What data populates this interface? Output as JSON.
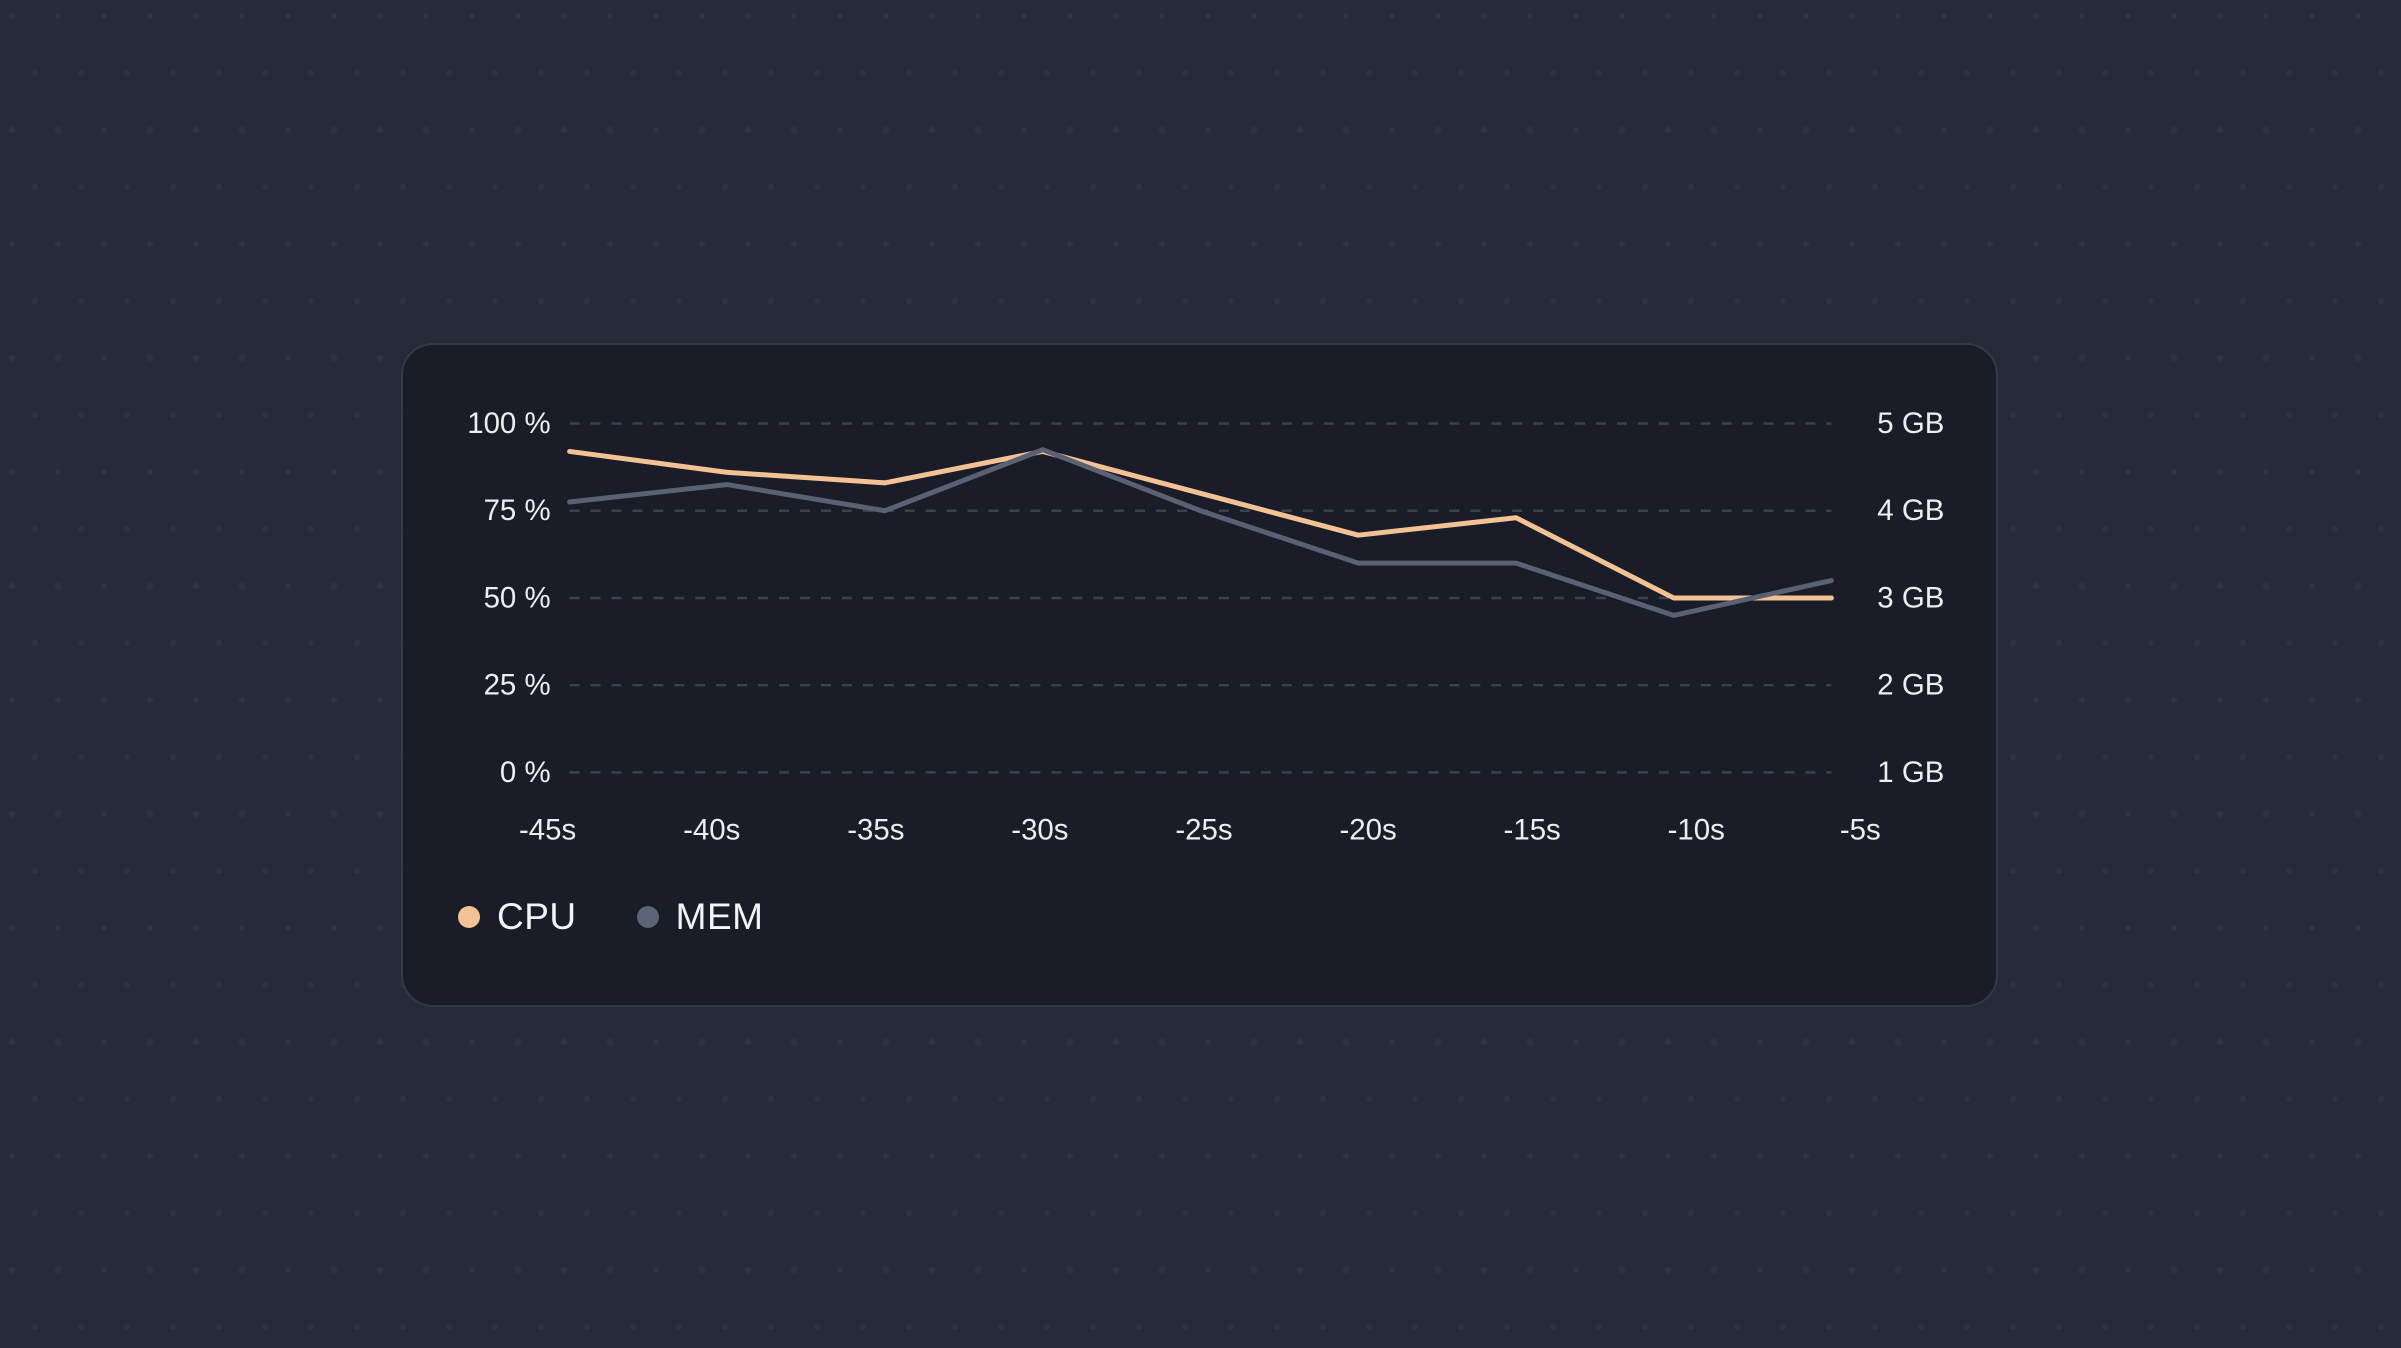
{
  "page": {
    "background_color": "#272b39",
    "pattern_dot_color": "rgba(158,168,192,0.07)"
  },
  "card": {
    "background_color": "#1a1d27",
    "border_color": "#333948",
    "gridline_color": "#3c414e",
    "axis_text_color": "#eceef2"
  },
  "legend": {
    "items": [
      {
        "label": "CPU",
        "color": "#f2c294"
      },
      {
        "label": "MEM",
        "color": "#5d6477"
      }
    ]
  },
  "chart_data": {
    "type": "line",
    "title": "",
    "categories": [
      "-45s",
      "-40s",
      "-35s",
      "-30s",
      "-25s",
      "-20s",
      "-15s",
      "-10s",
      "-5s"
    ],
    "series": [
      {
        "name": "CPU",
        "axis": "left",
        "unit": "%",
        "color": "#f2c294",
        "values": [
          92,
          86,
          83,
          92,
          80,
          68,
          73,
          50,
          50
        ]
      },
      {
        "name": "MEM",
        "axis": "right",
        "unit": "GB",
        "color": "#5a6174",
        "values": [
          4.1,
          4.3,
          4.0,
          4.7,
          4.0,
          3.4,
          3.4,
          2.8,
          3.2
        ]
      }
    ],
    "left_axis": {
      "min": 0,
      "max": 100,
      "ticks": [
        {
          "value": 100,
          "label": "100 %"
        },
        {
          "value": 75,
          "label": "75 %"
        },
        {
          "value": 50,
          "label": "50 %"
        },
        {
          "value": 25,
          "label": "25 %"
        },
        {
          "value": 0,
          "label": "0 %"
        }
      ]
    },
    "right_axis": {
      "min": 1,
      "max": 5,
      "ticks": [
        {
          "value": 5,
          "label": "5 GB"
        },
        {
          "value": 4,
          "label": "4 GB"
        },
        {
          "value": 3,
          "label": "3 GB"
        },
        {
          "value": 2,
          "label": "2 GB"
        },
        {
          "value": 1,
          "label": "1 GB"
        }
      ]
    },
    "grid": "horizontal-dashed",
    "legend_position": "bottom-left",
    "line_width": 5
  }
}
